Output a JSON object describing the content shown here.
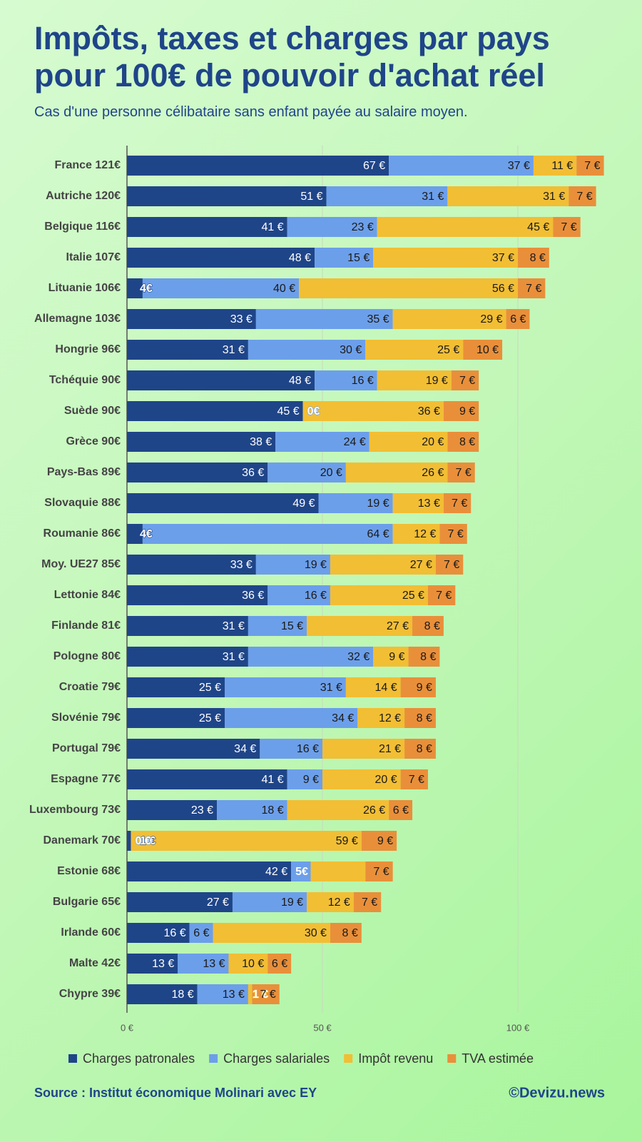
{
  "chart_data": {
    "type": "stacked-barh",
    "title": "Impôts, taxes et charges par pays pour 100€ de pouvoir d'achat réel",
    "subtitle": "Cas d'une personne célibataire sans enfant payée au salaire moyen.",
    "source": "Source : Institut économique Molinari avec EY",
    "credit": "©Devizu.news",
    "categories": [
      "France 121€",
      "Autriche 120€",
      "Belgique 116€",
      "Italie 107€",
      "Lituanie 106€",
      "Allemagne 103€",
      "Hongrie 96€",
      "Tchéquie 90€",
      "Suède 90€",
      "Grèce 90€",
      "Pays-Bas 89€",
      "Slovaquie 88€",
      "Roumanie 86€",
      "Moy. UE27 85€",
      "Lettonie 84€",
      "Finlande 81€",
      "Pologne 80€",
      "Croatie 79€",
      "Slovénie 79€",
      "Portugal 79€",
      "Espagne 77€",
      "Luxembourg 73€",
      "Danemark 70€",
      "Estonie 68€",
      "Bulgarie 65€",
      "Irlande 60€",
      "Malte 42€",
      "Chypre 39€"
    ],
    "series": [
      {
        "name": "Charges patronales",
        "color": "#1f4589",
        "values": [
          67,
          51,
          41,
          48,
          4,
          33,
          31,
          48,
          45,
          38,
          36,
          49,
          4,
          33,
          36,
          31,
          31,
          25,
          25,
          34,
          41,
          23,
          1,
          42,
          27,
          16,
          13,
          18
        ],
        "value_labels": [
          "67 €",
          "51 €",
          "41 €",
          "48 €",
          "4€",
          "33 €",
          "31 €",
          "48 €",
          "45 €",
          "38 €",
          "36 €",
          "49 €",
          "4€",
          "33 €",
          "36 €",
          "31 €",
          "31 €",
          "25 €",
          "25 €",
          "34 €",
          "41 €",
          "23 €",
          "1 €",
          "42 €",
          "27 €",
          "16 €",
          "13 €",
          "18 €"
        ]
      },
      {
        "name": "Charges salariales",
        "color": "#6c9fea",
        "values": [
          37,
          31,
          23,
          15,
          40,
          35,
          30,
          16,
          0,
          24,
          20,
          19,
          64,
          19,
          16,
          15,
          32,
          31,
          34,
          16,
          9,
          18,
          0,
          5,
          19,
          6,
          13,
          13
        ],
        "value_labels": [
          "37 €",
          "31 €",
          "23 €",
          "15 €",
          "40 €",
          "35 €",
          "30 €",
          "16 €",
          "0€",
          "24 €",
          "20 €",
          "19 €",
          "64 €",
          "19 €",
          "16 €",
          "15 €",
          "32 €",
          "31 €",
          "34 €",
          "16 €",
          "9 €",
          "18 €",
          "0 €",
          "5€",
          "19 €",
          "6 €",
          "13 €",
          "13 €"
        ]
      },
      {
        "name": "Impôt revenu",
        "color": "#f2be34",
        "values": [
          11,
          31,
          45,
          37,
          56,
          29,
          25,
          19,
          36,
          20,
          26,
          13,
          12,
          27,
          25,
          27,
          9,
          14,
          12,
          21,
          20,
          26,
          59,
          14,
          12,
          30,
          10,
          1
        ],
        "value_labels": [
          "11 €",
          "31 €",
          "45 €",
          "37 €",
          "56 €",
          "29 €",
          "25 €",
          "19 €",
          "36 €",
          "20 €",
          "26 €",
          "13 €",
          "12 €",
          "27 €",
          "25 €",
          "27 €",
          "9 €",
          "14 €",
          "12 €",
          "21 €",
          "20 €",
          "26 €",
          "59 €",
          null,
          "12 €",
          "30 €",
          "10 €",
          "1 €"
        ]
      },
      {
        "name": "TVA estimée",
        "color": "#e98f3a",
        "values": [
          7,
          7,
          7,
          8,
          7,
          6,
          10,
          7,
          9,
          8,
          7,
          7,
          7,
          7,
          7,
          8,
          8,
          9,
          8,
          8,
          7,
          6,
          9,
          7,
          7,
          8,
          6,
          7
        ],
        "value_labels": [
          "7 €",
          "7 €",
          "7 €",
          "8 €",
          "7 €",
          "6 €",
          "10 €",
          "7 €",
          "9 €",
          "8 €",
          "7 €",
          "7 €",
          "7 €",
          "7 €",
          "7 €",
          "8 €",
          "8 €",
          "9 €",
          "8 €",
          "8 €",
          "7 €",
          "6 €",
          "9 €",
          "7 €",
          "7 €",
          "8 €",
          "6 €",
          "7 €"
        ]
      }
    ],
    "xlim": [
      0,
      125
    ],
    "xticks": [
      {
        "value": 0,
        "label": "0 €"
      },
      {
        "value": 50,
        "label": "50 €"
      },
      {
        "value": 100,
        "label": "100 €"
      }
    ],
    "grid": true
  }
}
